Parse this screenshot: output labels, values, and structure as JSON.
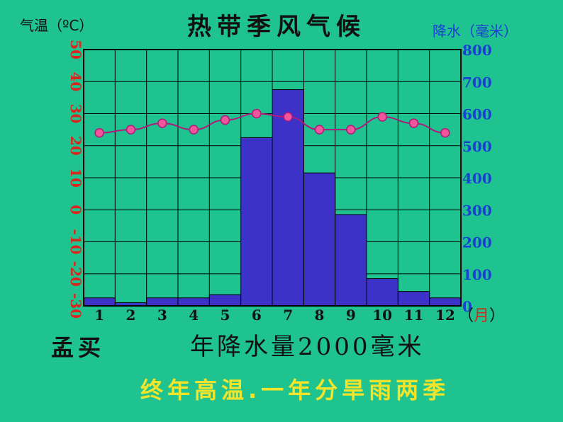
{
  "title": "热带季风气候",
  "left_axis_label": "气温（ºC）",
  "right_axis_label": "降水（毫米）",
  "city": "孟买",
  "annual_precip": "年降水量2000毫米",
  "summary": "终年高温.一年分旱雨两季",
  "month_unit_open": "（",
  "month_unit_text": "月",
  "month_unit_close": "）",
  "colors": {
    "background": "#1FC38F",
    "bars": "#3C32C8",
    "temp_line": "#B0197C",
    "temp_dot": "#F0569B",
    "left_axis": "#D9261C",
    "right_axis": "#1a3fd4"
  },
  "chart_data": {
    "type": "bar+line",
    "categories": [
      "1",
      "2",
      "3",
      "4",
      "5",
      "6",
      "7",
      "8",
      "9",
      "10",
      "11",
      "12"
    ],
    "precipitation": {
      "values": [
        25,
        10,
        25,
        25,
        35,
        525,
        675,
        415,
        285,
        85,
        45,
        25
      ],
      "ylim": [
        0,
        800
      ],
      "ticks": [
        "0",
        "100",
        "200",
        "300",
        "400",
        "500",
        "600",
        "700",
        "800"
      ]
    },
    "temperature": {
      "values": [
        24,
        25,
        27,
        25,
        28,
        30,
        29,
        25,
        25,
        29,
        27,
        24
      ],
      "ylim": [
        -30,
        50
      ],
      "ticks": [
        "50",
        "40",
        "30",
        "20",
        "10",
        "0",
        "-10",
        "-20",
        "-30"
      ]
    },
    "grid": true
  }
}
